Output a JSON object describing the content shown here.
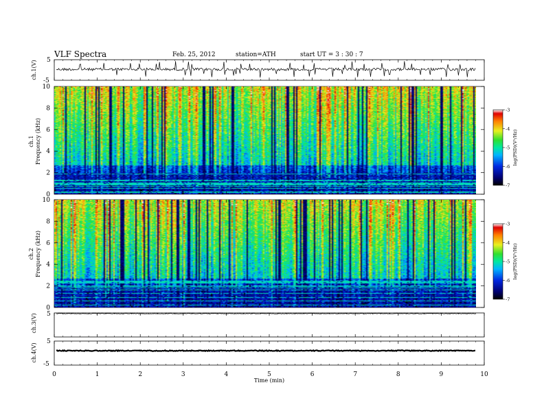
{
  "header": {
    "title": "VLF  Spectra",
    "date": "Feb. 25, 2012",
    "station": "station=ATH",
    "start": "start  UT  =   3  : 30 : 7"
  },
  "chart_data": [
    {
      "type": "line",
      "name": "ch1-waveform",
      "ylabel": "ch.1(V)",
      "ylim": [
        -5,
        5
      ],
      "yticks": [
        "5",
        "-5"
      ],
      "xlim": [
        0,
        10
      ]
    },
    {
      "type": "heatmap",
      "name": "ch1-spectrogram",
      "ylabel_top": "ch.1",
      "ylabel": "Frequency  (kHz)",
      "ylim": [
        0,
        10
      ],
      "yticks": [
        "0",
        "2",
        "4",
        "6",
        "8",
        "10"
      ],
      "xlim": [
        0,
        9.8
      ],
      "colorbar": {
        "label": "log(PSD)(V²/Hz)",
        "range": [
          -7,
          -3
        ],
        "ticks": [
          "-3",
          "-4",
          "-5",
          "-6",
          "-7"
        ]
      }
    },
    {
      "type": "heatmap",
      "name": "ch2-spectrogram",
      "ylabel_top": "ch.2",
      "ylabel": "Frequency  (kHz)",
      "ylim": [
        0,
        10
      ],
      "yticks": [
        "0",
        "2",
        "4",
        "6",
        "8",
        "10"
      ],
      "xlim": [
        0,
        9.8
      ],
      "colorbar": {
        "label": "log(PSD)(V²/Hz)",
        "range": [
          -7,
          -3
        ],
        "ticks": [
          "-3",
          "-4",
          "-5",
          "-6",
          "-7"
        ]
      }
    },
    {
      "type": "line",
      "name": "ch3-waveform",
      "ylabel": "ch.3(V)",
      "ylim": [
        -5,
        5
      ],
      "yticks": [
        "5"
      ],
      "xlim": [
        0,
        10
      ]
    },
    {
      "type": "line",
      "name": "ch4-waveform",
      "ylabel": "ch.4(V)",
      "ylim": [
        -5,
        5
      ],
      "yticks": [
        "5",
        "-5"
      ],
      "xlim": [
        0,
        10
      ]
    }
  ],
  "xaxis": {
    "label": "Time  (min)",
    "ticks": [
      "0",
      "1",
      "2",
      "3",
      "4",
      "5",
      "6",
      "7",
      "8",
      "9",
      "10"
    ]
  }
}
